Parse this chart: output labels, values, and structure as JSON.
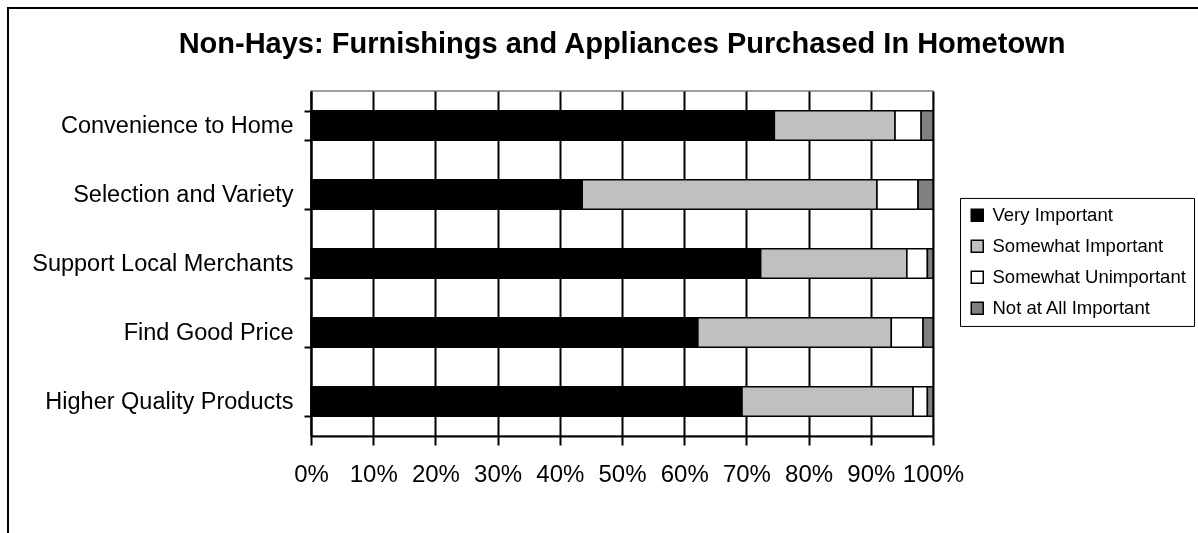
{
  "chart_data": {
    "type": "bar",
    "orientation": "horizontal",
    "stacked": true,
    "title": "Non-Hays: Furnishings and Appliances Purchased In Hometown",
    "categories": [
      "Convenience to Home",
      "Selection and Variety",
      "Support Local Merchants",
      "Find Good Price",
      "Higher Quality Products"
    ],
    "series": [
      {
        "name": "Very Important",
        "color": "#000000",
        "values": [
          74.5,
          43.6,
          72.3,
          62.2,
          69.3
        ]
      },
      {
        "name": "Somewhat Important",
        "color": "#c0c0c0",
        "values": [
          19.4,
          47.4,
          23.5,
          31.1,
          27.5
        ]
      },
      {
        "name": "Somewhat Unimportant",
        "color": "#ffffff",
        "values": [
          4.2,
          6.6,
          3.3,
          5.1,
          2.3
        ]
      },
      {
        "name": "Not at All Important",
        "color": "#808080",
        "values": [
          1.9,
          2.4,
          0.9,
          1.6,
          0.9
        ]
      }
    ],
    "xlim": [
      0,
      100
    ],
    "xticks": [
      {
        "value": 0,
        "label": "0%"
      },
      {
        "value": 10,
        "label": "10%"
      },
      {
        "value": 20,
        "label": "20%"
      },
      {
        "value": 30,
        "label": "30%"
      },
      {
        "value": 40,
        "label": "40%"
      },
      {
        "value": 50,
        "label": "50%"
      },
      {
        "value": 60,
        "label": "60%"
      },
      {
        "value": 70,
        "label": "70%"
      },
      {
        "value": 80,
        "label": "80%"
      },
      {
        "value": 90,
        "label": "90%"
      },
      {
        "value": 100,
        "label": "100%"
      }
    ],
    "grid": "x",
    "legend": "right"
  }
}
